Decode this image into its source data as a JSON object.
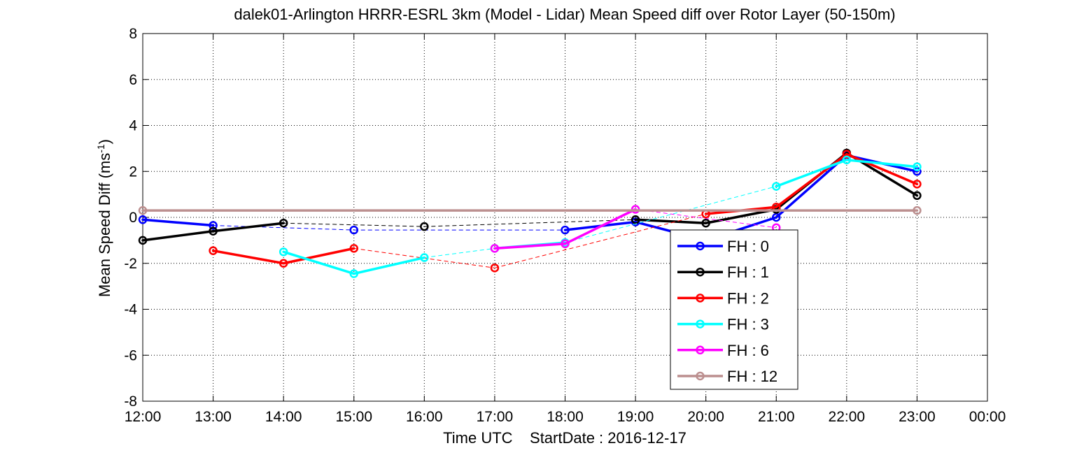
{
  "chart_data": {
    "type": "line",
    "title": "dalek01-Arlington HRRR-ESRL 3km (Model - Lidar) Mean Speed diff over Rotor Layer (50-150m)",
    "xlabel": "Time UTC    StartDate : 2016-12-17",
    "ylabel_main": "Mean Speed Diff (ms",
    "ylabel_sup": "-1",
    "ylabel_close": ")",
    "ylim": [
      -8,
      8
    ],
    "yticks": [
      -8,
      -6,
      -4,
      -2,
      0,
      2,
      4,
      6,
      8
    ],
    "ytick_labels": [
      "-8",
      "-6",
      "-4",
      "-2",
      "0",
      "2",
      "4",
      "6",
      "8"
    ],
    "xlim": [
      12,
      24
    ],
    "xticks": [
      12,
      13,
      14,
      15,
      16,
      17,
      18,
      19,
      20,
      21,
      22,
      23,
      24
    ],
    "xtick_labels": [
      "12:00",
      "13:00",
      "14:00",
      "15:00",
      "16:00",
      "17:00",
      "18:00",
      "19:00",
      "20:00",
      "21:00",
      "22:00",
      "23:00",
      "00:00"
    ],
    "grid": true,
    "legend_position": "lower-right-center",
    "series": [
      {
        "name": "FH : 0",
        "color": "#0000ff",
        "points": [
          [
            12,
            -0.1
          ],
          [
            13,
            -0.35
          ],
          [
            15,
            -0.55
          ],
          [
            18,
            -0.55
          ],
          [
            19,
            -0.2
          ],
          [
            20,
            -1.0
          ],
          [
            21,
            0.0
          ],
          [
            22,
            2.7
          ],
          [
            23,
            2.0
          ]
        ],
        "solid_segments": [
          [
            0,
            1
          ],
          [
            3,
            4
          ],
          [
            4,
            5
          ],
          [
            5,
            6
          ],
          [
            6,
            7
          ],
          [
            7,
            8
          ]
        ]
      },
      {
        "name": "FH : 1",
        "color": "#000000",
        "points": [
          [
            12,
            -1.0
          ],
          [
            13,
            -0.6
          ],
          [
            14,
            -0.25
          ],
          [
            16,
            -0.4
          ],
          [
            19,
            -0.1
          ],
          [
            20,
            -0.25
          ],
          [
            21,
            0.35
          ],
          [
            22,
            2.8
          ],
          [
            23,
            0.95
          ]
        ],
        "solid_segments": [
          [
            0,
            1
          ],
          [
            1,
            2
          ],
          [
            4,
            5
          ],
          [
            5,
            6
          ],
          [
            6,
            7
          ],
          [
            7,
            8
          ]
        ]
      },
      {
        "name": "FH : 2",
        "color": "#ff0000",
        "points": [
          [
            13,
            -1.45
          ],
          [
            14,
            -2.0
          ],
          [
            15,
            -1.35
          ],
          [
            17,
            -2.2
          ],
          [
            20,
            0.15
          ],
          [
            21,
            0.45
          ],
          [
            22,
            2.75
          ],
          [
            23,
            1.45
          ]
        ],
        "solid_segments": [
          [
            0,
            1
          ],
          [
            1,
            2
          ],
          [
            4,
            5
          ],
          [
            5,
            6
          ],
          [
            6,
            7
          ]
        ]
      },
      {
        "name": "FH : 3",
        "color": "#00ffff",
        "points": [
          [
            14,
            -1.5
          ],
          [
            15,
            -2.45
          ],
          [
            16,
            -1.75
          ],
          [
            17,
            -1.35
          ],
          [
            18,
            -1.1
          ],
          [
            21,
            1.35
          ],
          [
            22,
            2.5
          ],
          [
            23,
            2.2
          ]
        ],
        "solid_segments": [
          [
            0,
            1
          ],
          [
            1,
            2
          ],
          [
            3,
            4
          ],
          [
            5,
            6
          ],
          [
            6,
            7
          ]
        ]
      },
      {
        "name": "FH : 6",
        "color": "#ff00ff",
        "points": [
          [
            17,
            -1.35
          ],
          [
            18,
            -1.15
          ],
          [
            19,
            0.35
          ],
          [
            21,
            -0.45
          ]
        ],
        "solid_segments": [
          [
            0,
            1
          ],
          [
            1,
            2
          ]
        ]
      },
      {
        "name": "FH : 12",
        "color": "#bc8f8f",
        "points": [
          [
            12,
            0.3
          ],
          [
            23,
            0.3
          ]
        ],
        "solid_segments": [
          [
            0,
            1
          ]
        ]
      }
    ]
  }
}
